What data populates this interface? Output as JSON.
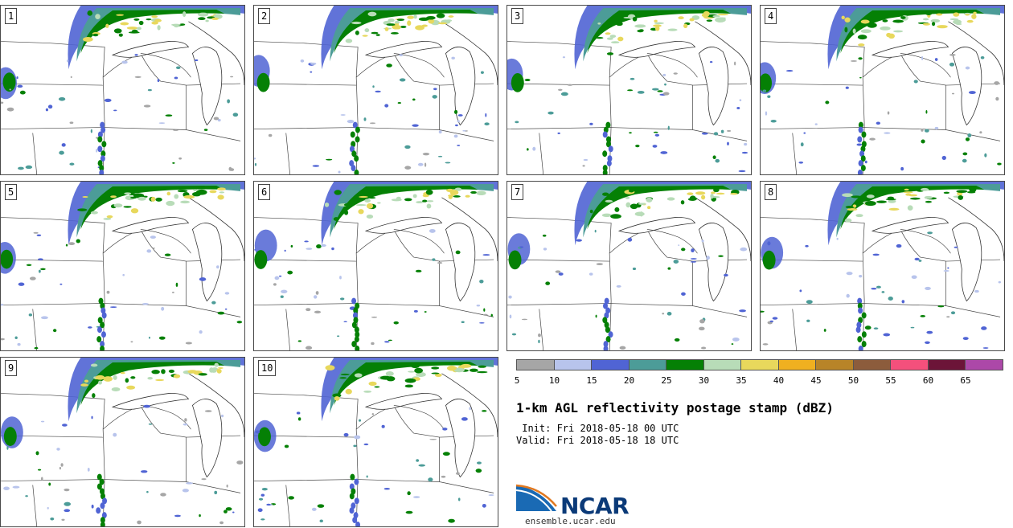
{
  "panels": [
    {
      "number": "1"
    },
    {
      "number": "2"
    },
    {
      "number": "3"
    },
    {
      "number": "4"
    },
    {
      "number": "5"
    },
    {
      "number": "6"
    },
    {
      "number": "7"
    },
    {
      "number": "8"
    },
    {
      "number": "9"
    },
    {
      "number": "10"
    }
  ],
  "colorbar": {
    "colors": [
      "#a6a6a6",
      "#b8c4ec",
      "#5064d4",
      "#4c9c98",
      "#058005",
      "#b8dcb8",
      "#e8d85c",
      "#f0b020",
      "#b88428",
      "#8c5c3c",
      "#f4507c",
      "#6c1438",
      "#ac48a8"
    ],
    "ticks": [
      "5",
      "10",
      "15",
      "20",
      "25",
      "30",
      "35",
      "40",
      "45",
      "50",
      "55",
      "60",
      "65"
    ]
  },
  "title": "1-km AGL reflectivity postage stamp (dBZ)",
  "init_line": " Init: Fri 2018-05-18 00 UTC",
  "valid_line": "Valid: Fri 2018-05-18 18 UTC",
  "logo": {
    "name": "NCAR",
    "url": "ensemble.ucar.edu"
  }
}
